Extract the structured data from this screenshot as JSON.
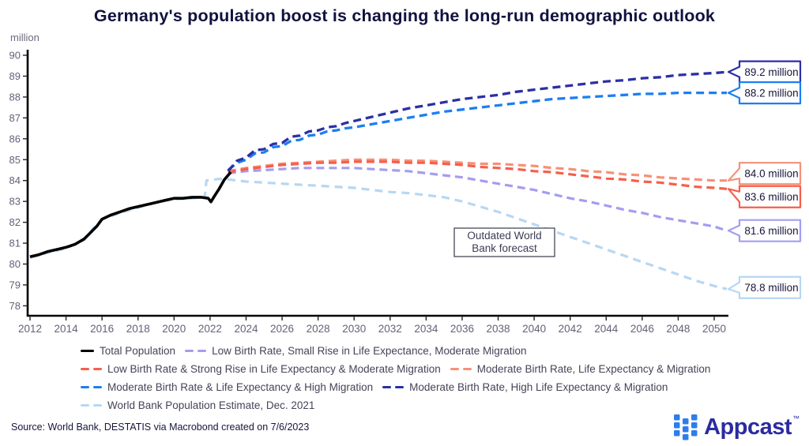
{
  "title": "Germany's population boost is changing the long-run demographic outlook",
  "source": "Source: World Bank, DESTATIS via Macrobond created on 7/6/2023",
  "annotation": {
    "lines": [
      "Outdated World",
      "Bank forecast"
    ]
  },
  "footer": {
    "logo": {
      "name": "Appcast",
      "tm": "™",
      "icon_color": "#2e7de9",
      "text_color": "#2b2ba0"
    }
  },
  "colors": {
    "title_text": "#12123f",
    "axis_line": "#000000",
    "axis_tick_text": "#62627a",
    "legend_text": "#44445a",
    "navy": "#2c2fa5",
    "blue": "#1d7ef2",
    "salmon": "#f69078",
    "red": "#f55f4b",
    "purple": "#a49df0",
    "lightblue": "#b7d7f3",
    "black": "#000000"
  },
  "chart_data": {
    "type": "line",
    "title": "Germany's population boost is changing the long-run demographic outlook",
    "unit_label": "million",
    "xlabel": "",
    "ylabel": "million",
    "ylim": [
      78,
      90
    ],
    "xlim": [
      2012,
      2051
    ],
    "grid": false,
    "y_ticks": [
      90,
      89,
      88,
      87,
      86,
      85,
      84,
      83,
      82,
      81,
      80,
      79,
      78
    ],
    "x_ticks": [
      2012,
      2014,
      2016,
      2018,
      2020,
      2022,
      2024,
      2026,
      2028,
      2030,
      2032,
      2034,
      2036,
      2038,
      2040,
      2042,
      2044,
      2046,
      2048,
      2050
    ],
    "series": [
      {
        "name": "World Bank Population Estimate, Dec. 2021",
        "color": "#b7d7f3",
        "width": 3.2,
        "dash": "10 7",
        "x": [
          2012,
          2013,
          2014,
          2015,
          2015.5,
          2016,
          2017,
          2018,
          2019,
          2020,
          2021,
          2021.7,
          2021.8,
          2022.5,
          2023,
          2024,
          2025,
          2026,
          2027,
          2028,
          2029,
          2030,
          2031,
          2032,
          2033,
          2034,
          2035,
          2036,
          2037,
          2038,
          2039,
          2040,
          2041,
          2042,
          2043,
          2044,
          2045,
          2046,
          2047,
          2048,
          2049,
          2050,
          2050.7
        ],
        "y": [
          80.3,
          80.55,
          80.75,
          81.15,
          81.7,
          82.15,
          82.45,
          82.7,
          82.95,
          83.1,
          83.15,
          83.2,
          84.0,
          84.08,
          84.05,
          83.95,
          83.9,
          83.85,
          83.8,
          83.75,
          83.7,
          83.65,
          83.55,
          83.45,
          83.4,
          83.3,
          83.2,
          83.0,
          82.75,
          82.5,
          82.2,
          81.9,
          81.6,
          81.3,
          81.0,
          80.7,
          80.4,
          80.1,
          79.8,
          79.5,
          79.2,
          78.95,
          78.8
        ]
      },
      {
        "name": "Low Birth Rate, Small Rise in Life Expectance, Moderate Migration",
        "color": "#a49df0",
        "width": 3.2,
        "dash": "10 6",
        "x": [
          2023,
          2024,
          2025,
          2026,
          2027,
          2028,
          2029,
          2030,
          2031,
          2032,
          2033,
          2034,
          2035,
          2036,
          2037,
          2038,
          2039,
          2040,
          2041,
          2042,
          2043,
          2044,
          2045,
          2046,
          2047,
          2048,
          2049,
          2050,
          2050.7
        ],
        "y": [
          84.35,
          84.45,
          84.5,
          84.55,
          84.6,
          84.6,
          84.6,
          84.6,
          84.55,
          84.5,
          84.45,
          84.35,
          84.25,
          84.15,
          84.0,
          83.85,
          83.7,
          83.55,
          83.35,
          83.15,
          83.0,
          82.8,
          82.6,
          82.45,
          82.25,
          82.1,
          81.95,
          81.8,
          81.6
        ]
      },
      {
        "name": "Moderate Birth Rate, Life Expectancy & Migration",
        "color": "#f69078",
        "width": 3.2,
        "dash": "10 6",
        "x": [
          2023,
          2024,
          2025,
          2026,
          2027,
          2028,
          2029,
          2030,
          2031,
          2032,
          2033,
          2034,
          2035,
          2036,
          2037,
          2038,
          2039,
          2040,
          2041,
          2042,
          2043,
          2044,
          2045,
          2046,
          2047,
          2048,
          2049,
          2050,
          2050.7
        ],
        "y": [
          84.45,
          84.6,
          84.7,
          84.8,
          84.85,
          84.9,
          84.95,
          85.0,
          85.0,
          85.0,
          84.95,
          84.95,
          84.9,
          84.85,
          84.8,
          84.8,
          84.75,
          84.7,
          84.6,
          84.55,
          84.45,
          84.4,
          84.3,
          84.25,
          84.15,
          84.1,
          84.05,
          84.0,
          84.0
        ]
      },
      {
        "name": "Low Birth Rate & Strong Rise in Life Expectancy & Moderate Migration",
        "color": "#f55f4b",
        "width": 3.2,
        "dash": "10 6",
        "x": [
          2023,
          2024,
          2025,
          2026,
          2027,
          2028,
          2029,
          2030,
          2031,
          2032,
          2033,
          2034,
          2035,
          2036,
          2037,
          2038,
          2039,
          2040,
          2041,
          2042,
          2043,
          2044,
          2045,
          2046,
          2047,
          2048,
          2049,
          2050,
          2050.7
        ],
        "y": [
          84.4,
          84.55,
          84.65,
          84.75,
          84.8,
          84.85,
          84.85,
          84.9,
          84.9,
          84.9,
          84.85,
          84.85,
          84.8,
          84.75,
          84.65,
          84.6,
          84.55,
          84.45,
          84.4,
          84.3,
          84.2,
          84.1,
          84.05,
          83.95,
          83.9,
          83.8,
          83.7,
          83.65,
          83.6
        ]
      },
      {
        "name": "Moderate Birth Rate & Life Expectancy & High Migration",
        "color": "#1d7ef2",
        "width": 3.3,
        "dash": "10 6",
        "x": [
          2023,
          2023.5,
          2024,
          2024.5,
          2025,
          2025.5,
          2026,
          2026.5,
          2027,
          2027.5,
          2028,
          2028.5,
          2029,
          2029.5,
          2030,
          2031,
          2032,
          2033,
          2034,
          2035,
          2036,
          2037,
          2038,
          2039,
          2040,
          2041,
          2042,
          2043,
          2044,
          2045,
          2046,
          2047,
          2048,
          2049,
          2050,
          2050.7
        ],
        "y": [
          84.5,
          84.85,
          85.0,
          85.3,
          85.35,
          85.6,
          85.65,
          85.9,
          85.95,
          86.15,
          86.2,
          86.35,
          86.4,
          86.5,
          86.55,
          86.7,
          86.85,
          87.0,
          87.15,
          87.3,
          87.4,
          87.5,
          87.6,
          87.7,
          87.8,
          87.9,
          87.95,
          88.0,
          88.05,
          88.1,
          88.15,
          88.15,
          88.2,
          88.2,
          88.2,
          88.2
        ]
      },
      {
        "name": "Moderate Birth Rate, High Life Expectancy & Migration",
        "color": "#2c2fa5",
        "width": 3.3,
        "dash": "10 6",
        "x": [
          2023,
          2023.5,
          2024,
          2024.5,
          2025,
          2025.5,
          2026,
          2026.5,
          2027,
          2027.5,
          2028,
          2028.5,
          2029,
          2029.5,
          2030,
          2031,
          2032,
          2033,
          2034,
          2035,
          2036,
          2037,
          2038,
          2039,
          2040,
          2041,
          2042,
          2043,
          2044,
          2045,
          2046,
          2047,
          2048,
          2049,
          2050,
          2050.7
        ],
        "y": [
          84.45,
          84.95,
          85.1,
          85.45,
          85.5,
          85.75,
          85.8,
          86.1,
          86.15,
          86.35,
          86.4,
          86.55,
          86.6,
          86.75,
          86.85,
          87.05,
          87.25,
          87.45,
          87.6,
          87.75,
          87.9,
          88.0,
          88.1,
          88.25,
          88.35,
          88.45,
          88.55,
          88.65,
          88.75,
          88.8,
          88.9,
          88.95,
          89.05,
          89.1,
          89.15,
          89.2
        ]
      },
      {
        "name": "Total Population",
        "color": "#000000",
        "width": 3.6,
        "dash": "none",
        "x": [
          2012,
          2012.5,
          2013,
          2013.5,
          2014,
          2014.5,
          2015,
          2015.3,
          2015.7,
          2016,
          2016.5,
          2017,
          2017.5,
          2018,
          2018.5,
          2019,
          2019.5,
          2020,
          2020.5,
          2021,
          2021.5,
          2021.9,
          2022.05,
          2022.2,
          2022.5,
          2022.8,
          2023,
          2023.15
        ],
        "y": [
          80.35,
          80.45,
          80.6,
          80.7,
          80.8,
          80.95,
          81.2,
          81.45,
          81.8,
          82.15,
          82.35,
          82.5,
          82.65,
          82.75,
          82.85,
          82.95,
          83.05,
          83.15,
          83.15,
          83.2,
          83.2,
          83.15,
          82.98,
          83.2,
          83.6,
          84.05,
          84.25,
          84.4
        ]
      }
    ],
    "end_labels": [
      {
        "text": "89.2 million",
        "value": 89.2,
        "color": "#2c2fa5"
      },
      {
        "text": "88.2 million",
        "value": 88.2,
        "color": "#1d7ef2"
      },
      {
        "text": "84.0 million",
        "value": 84.0,
        "color": "#f69078"
      },
      {
        "text": "83.6 million",
        "value": 83.6,
        "color": "#f55f4b"
      },
      {
        "text": "81.6 million",
        "value": 81.6,
        "color": "#a49df0"
      },
      {
        "text": "78.8 million",
        "value": 78.8,
        "color": "#b7d7f3"
      }
    ],
    "legend_position": "bottom"
  },
  "legend": {
    "rows": [
      [
        {
          "label": "Total Population",
          "color": "#000000",
          "style": "solid"
        },
        {
          "label": "Low Birth Rate, Small Rise in Life Expectance, Moderate Migration",
          "color": "#a49df0",
          "style": "dashed"
        }
      ],
      [
        {
          "label": "Low Birth Rate & Strong Rise in Life Expectancy & Moderate Migration",
          "color": "#f55f4b",
          "style": "dashed"
        },
        {
          "label": "Moderate Birth Rate, Life Expectancy & Migration",
          "color": "#f69078",
          "style": "dashed"
        }
      ],
      [
        {
          "label": "Moderate Birth Rate & Life Expectancy & High Migration",
          "color": "#1d7ef2",
          "style": "dashed"
        },
        {
          "label": "Moderate Birth Rate, High Life Expectancy & Migration",
          "color": "#2c2fa5",
          "style": "dashed"
        }
      ],
      [
        {
          "label": "World Bank Population Estimate, Dec. 2021",
          "color": "#b7d7f3",
          "style": "dashed"
        }
      ]
    ]
  }
}
